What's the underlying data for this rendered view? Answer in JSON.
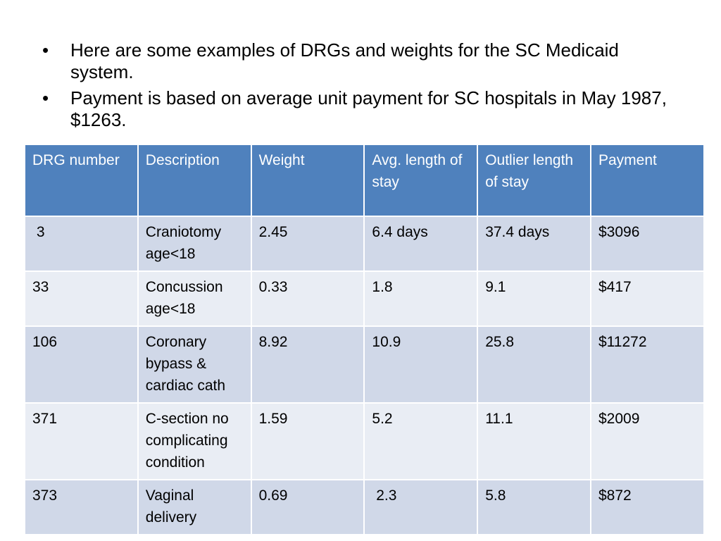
{
  "bullets": [
    "Here are some examples of DRGs and weights for the SC Medicaid system.",
    "Payment is based on average unit payment for SC hospitals in May 1987, $1263."
  ],
  "bullet_glyph": "•",
  "table": {
    "headers": [
      "DRG number",
      "Description",
      "Weight",
      "Avg. length of stay",
      "Outlier length of stay",
      "Payment"
    ],
    "rows": [
      [
        " 3",
        "Craniotomy age<18",
        "2.45",
        "6.4 days",
        "37.4 days",
        "$3096"
      ],
      [
        "33",
        "Concussion age<18",
        "0.33",
        "1.8",
        "9.1",
        "$417"
      ],
      [
        "106",
        "Coronary bypass & cardiac cath",
        "8.92",
        "10.9",
        "25.8",
        "$11272"
      ],
      [
        "371",
        "C-section no complicating condition",
        "1.59",
        "5.2",
        "11.1",
        "$2009"
      ],
      [
        "373",
        "Vaginal delivery",
        "0.69",
        " 2.3",
        "5.8",
        "$872"
      ]
    ]
  },
  "colors": {
    "header_bg": "#4f81bd",
    "row_odd_bg": "#d0d8e8",
    "row_even_bg": "#e9edf4"
  }
}
